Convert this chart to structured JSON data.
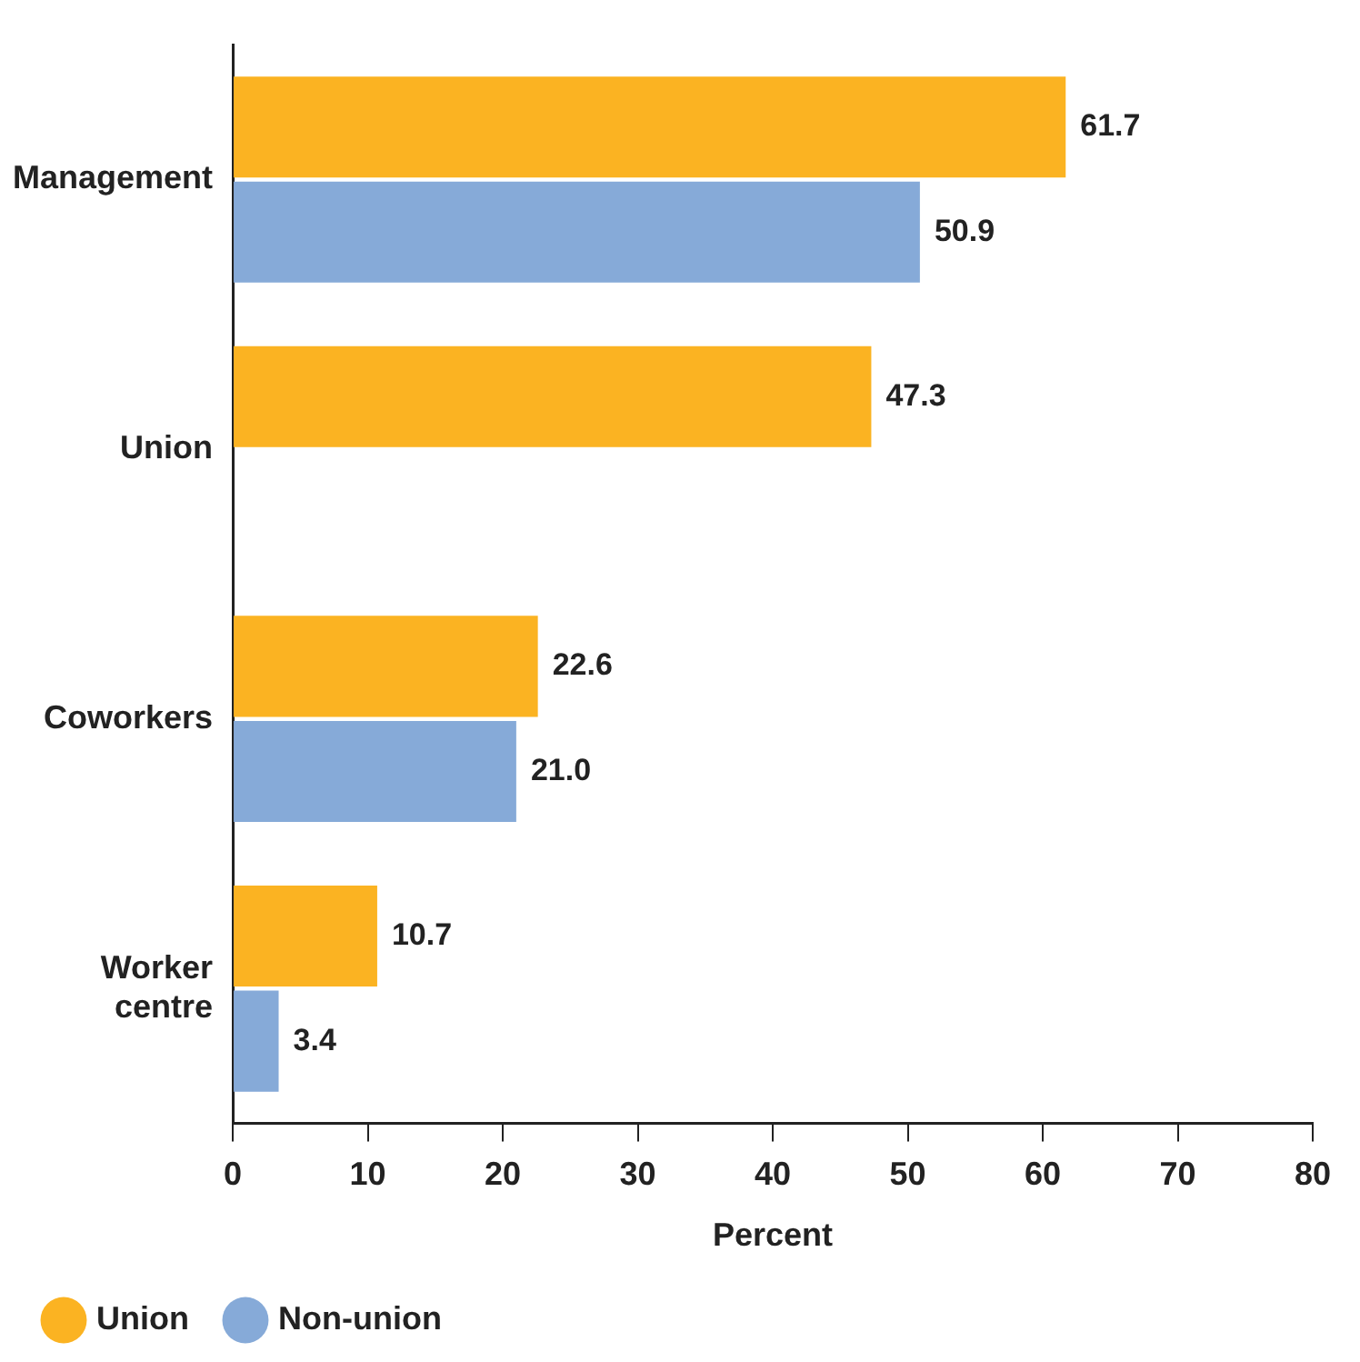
{
  "chart_data": {
    "type": "bar",
    "orientation": "horizontal",
    "xlabel": "Percent",
    "categories": [
      "Management",
      "Union",
      "Coworkers",
      "Worker centre"
    ],
    "series": [
      {
        "name": "Union",
        "color": "#fbb322",
        "values": [
          61.7,
          47.3,
          22.6,
          10.7
        ],
        "value_labels": [
          "61.7",
          "47.3",
          "22.6",
          "10.7"
        ]
      },
      {
        "name": "Non-union",
        "color": "#86aad8",
        "values": [
          50.9,
          null,
          21.0,
          3.4
        ],
        "value_labels": [
          "50.9",
          null,
          "21.0",
          "3.4"
        ]
      }
    ],
    "xlim": [
      0,
      80
    ],
    "xticks": [
      0,
      10,
      20,
      30,
      40,
      50,
      60,
      70,
      80
    ],
    "grid": false,
    "legend": "bottom left"
  }
}
